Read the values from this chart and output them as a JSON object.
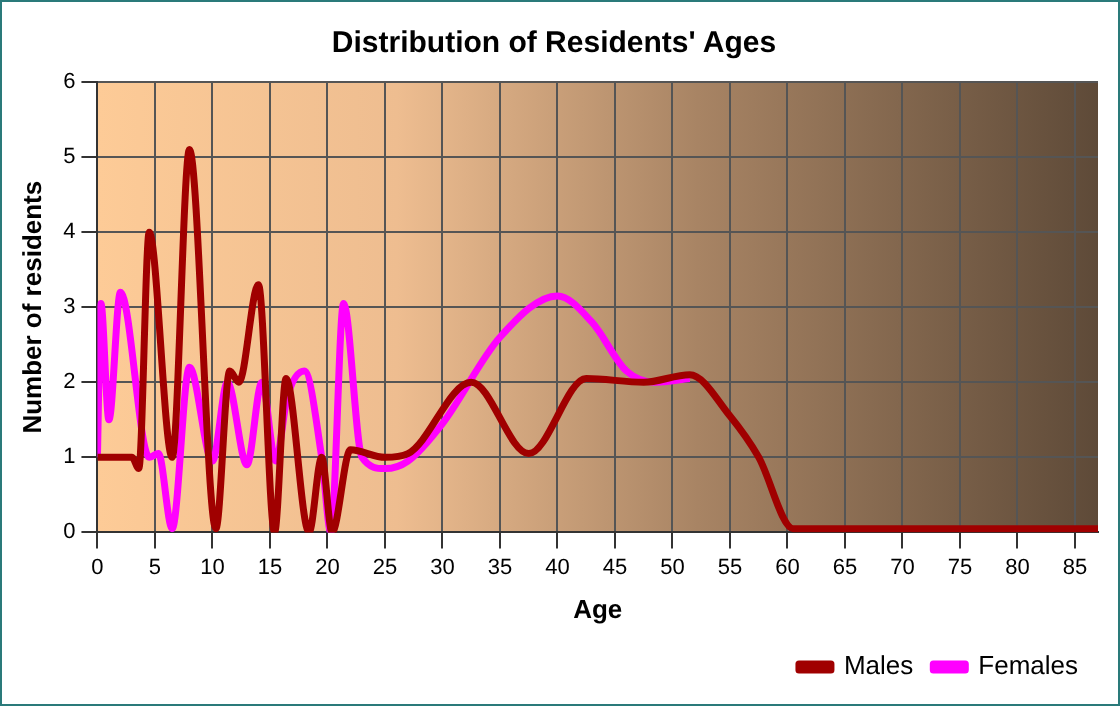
{
  "chart_data": {
    "type": "line",
    "title": "Distribution of Residents' Ages",
    "xlabel": "Age",
    "ylabel": "Number of residents",
    "xlim": [
      0,
      87
    ],
    "xticks": [
      0,
      5,
      10,
      15,
      20,
      25,
      30,
      35,
      40,
      45,
      50,
      55,
      60,
      65,
      70,
      75,
      80,
      85
    ],
    "ylim": [
      0,
      6
    ],
    "yticks": [
      0,
      1,
      2,
      3,
      4,
      5,
      6
    ],
    "grid": true,
    "legend": "bottom right",
    "marker": "none",
    "line_style": "solid",
    "series": [
      {
        "name": "Males",
        "color": "#a00000",
        "x": [
          0,
          1,
          2,
          3,
          3.6,
          4.5,
          6.5,
          8,
          10.3,
          11.5,
          12.3,
          14,
          15.4,
          16.4,
          18.4,
          19.5,
          20.4,
          22,
          25,
          27,
          32.5,
          37.5,
          42.5,
          47.5,
          51.5,
          55,
          57.5,
          60.5,
          62.5,
          87
        ],
        "values": [
          1,
          1,
          1,
          1,
          0.85,
          4,
          1,
          5.1,
          0.05,
          2.15,
          2,
          3.3,
          0,
          2.05,
          0,
          1,
          0,
          1.1,
          1,
          1.05,
          2,
          1.05,
          2.05,
          2,
          2.1,
          1.55,
          1,
          0.05,
          0.05,
          0.05
        ]
      },
      {
        "name": "Females",
        "color": "#ff00ff",
        "x": [
          0,
          0.3,
          1,
          2,
          4.5,
          5.3,
          6.5,
          8,
          10,
          11.3,
          13,
          14.3,
          15.5,
          16.5,
          18,
          19.5,
          20.3,
          21.4,
          23,
          25,
          27,
          30,
          35,
          40,
          43,
          46,
          48.5,
          51.5
        ],
        "values": [
          1,
          3.05,
          1.5,
          3.2,
          1,
          1.05,
          0.05,
          2.2,
          0.95,
          2,
          0.9,
          2,
          0.95,
          1.8,
          2.15,
          1,
          0,
          3.05,
          1,
          0.85,
          0.95,
          1.45,
          2.6,
          3.15,
          2.8,
          2.15,
          2,
          2.05
        ]
      }
    ]
  }
}
